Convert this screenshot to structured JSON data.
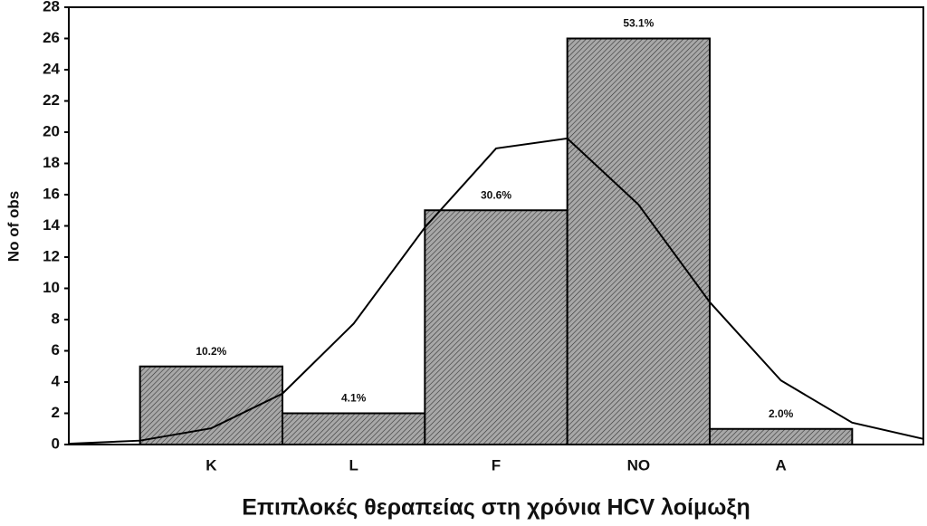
{
  "chart_data": {
    "type": "bar",
    "title": "Επιπλοκές θεραπείας στη χρόνια HCV λοίμωξη",
    "y_label": "No of obs",
    "categories": [
      "K",
      "L",
      "F",
      "NO",
      "A"
    ],
    "values": [
      5,
      2,
      15,
      26,
      1
    ],
    "value_labels": [
      "10.2%",
      "4.1%",
      "30.6%",
      "53.1%",
      "2.0%"
    ],
    "color": "#a8a8a8",
    "ylim": [
      0,
      28
    ],
    "yticks": [
      0,
      2,
      4,
      6,
      8,
      10,
      12,
      14,
      16,
      18,
      20,
      22,
      24,
      26,
      28
    ],
    "curve": {
      "x": [
        0,
        0.5,
        1,
        1.5,
        2,
        2.5,
        3,
        3.5,
        4,
        4.5,
        5,
        5.5,
        6
      ],
      "values": [
        0.05,
        0.25,
        1.04,
        3.26,
        7.74,
        13.9,
        18.96,
        19.6,
        15.36,
        9.12,
        4.1,
        1.4,
        0.36
      ]
    }
  }
}
